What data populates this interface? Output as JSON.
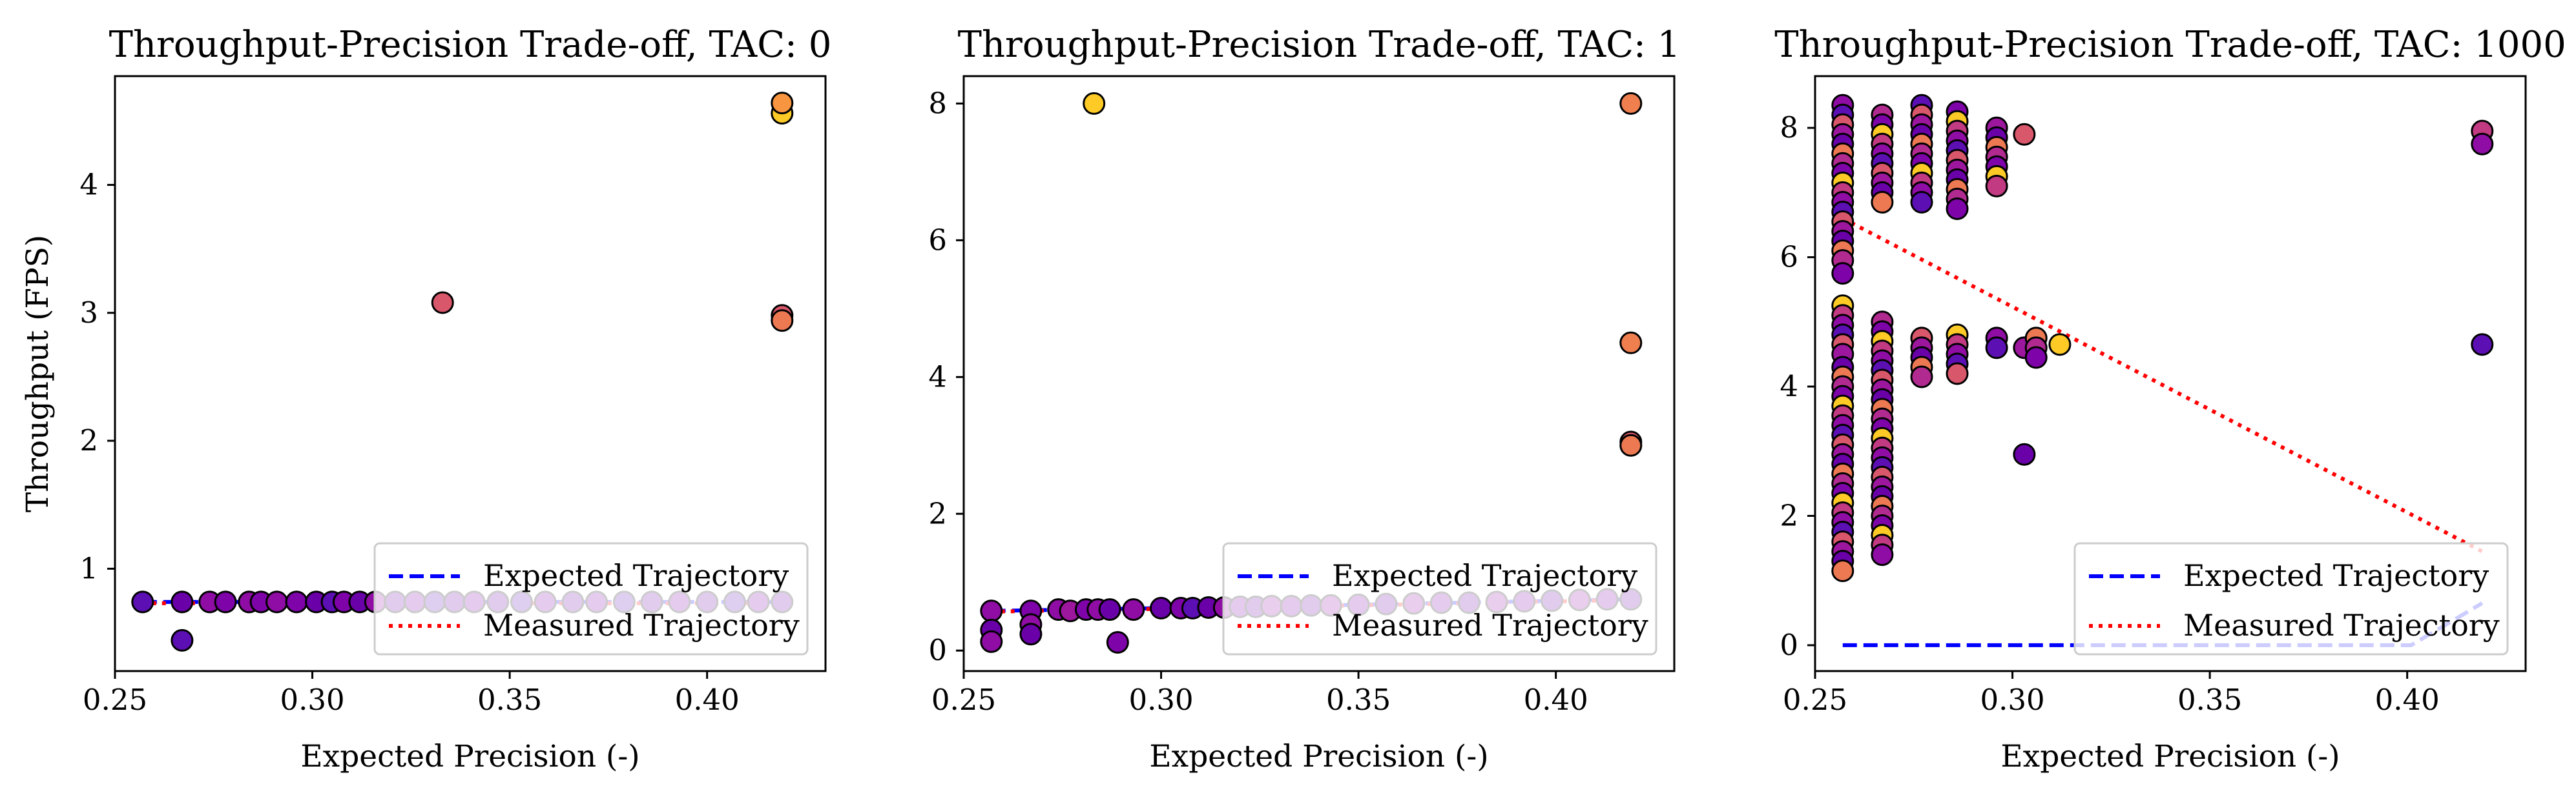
{
  "chart_data": [
    {
      "type": "scatter",
      "title": "Throughput-Precision Trade-off, TAC: 0",
      "xlabel": "Expected Precision (-)",
      "ylabel": "Throughput (FPS)",
      "xlim": [
        0.25,
        0.43
      ],
      "ylim": [
        0.2,
        4.85
      ],
      "xticks": [
        0.25,
        0.3,
        0.35,
        0.4
      ],
      "xtick_labels": [
        "0.25",
        "0.30",
        "0.35",
        "0.40"
      ],
      "yticks": [
        1,
        2,
        3,
        4
      ],
      "ytick_labels": [
        "1",
        "2",
        "3",
        "4"
      ],
      "legend_position": "lower-right",
      "legend": [
        {
          "label": "Expected Trajectory",
          "style": "dashed",
          "color": "#0000ff"
        },
        {
          "label": "Measured Trajectory",
          "style": "dotted",
          "color": "#ff0000"
        }
      ],
      "points": [
        {
          "x": 0.257,
          "y": 0.74,
          "color": "#5c0fb3"
        },
        {
          "x": 0.267,
          "y": 0.74,
          "color": "#6a00a8"
        },
        {
          "x": 0.267,
          "y": 0.44,
          "color": "#5c0fb3"
        },
        {
          "x": 0.274,
          "y": 0.74,
          "color": "#8f0da4"
        },
        {
          "x": 0.278,
          "y": 0.74,
          "color": "#7e03a8"
        },
        {
          "x": 0.284,
          "y": 0.74,
          "color": "#8f0da4"
        },
        {
          "x": 0.287,
          "y": 0.74,
          "color": "#7e03a8"
        },
        {
          "x": 0.291,
          "y": 0.74,
          "color": "#8f0da4"
        },
        {
          "x": 0.296,
          "y": 0.74,
          "color": "#7e03a8"
        },
        {
          "x": 0.301,
          "y": 0.74,
          "color": "#6a00a8"
        },
        {
          "x": 0.305,
          "y": 0.74,
          "color": "#5c0fb3"
        },
        {
          "x": 0.308,
          "y": 0.74,
          "color": "#7e03a8"
        },
        {
          "x": 0.312,
          "y": 0.74,
          "color": "#6a00a8"
        },
        {
          "x": 0.316,
          "y": 0.74,
          "color": "#8f0da4"
        },
        {
          "x": 0.321,
          "y": 0.74,
          "color": "#6a00a8"
        },
        {
          "x": 0.326,
          "y": 0.74,
          "color": "#7e03a8"
        },
        {
          "x": 0.331,
          "y": 0.74,
          "color": "#5c0fb3"
        },
        {
          "x": 0.336,
          "y": 0.74,
          "color": "#6a00a8"
        },
        {
          "x": 0.341,
          "y": 0.74,
          "color": "#7e03a8"
        },
        {
          "x": 0.347,
          "y": 0.74,
          "color": "#6a00a8"
        },
        {
          "x": 0.353,
          "y": 0.74,
          "color": "#5c0fb3"
        },
        {
          "x": 0.359,
          "y": 0.74,
          "color": "#7e03a8"
        },
        {
          "x": 0.366,
          "y": 0.74,
          "color": "#6a00a8"
        },
        {
          "x": 0.372,
          "y": 0.74,
          "color": "#7e03a8"
        },
        {
          "x": 0.379,
          "y": 0.74,
          "color": "#5c0fb3"
        },
        {
          "x": 0.386,
          "y": 0.74,
          "color": "#6a00a8"
        },
        {
          "x": 0.393,
          "y": 0.74,
          "color": "#7e03a8"
        },
        {
          "x": 0.4,
          "y": 0.74,
          "color": "#6a00a8"
        },
        {
          "x": 0.407,
          "y": 0.74,
          "color": "#5c0fb3"
        },
        {
          "x": 0.413,
          "y": 0.74,
          "color": "#7e03a8"
        },
        {
          "x": 0.419,
          "y": 0.74,
          "color": "#6a00a8"
        },
        {
          "x": 0.333,
          "y": 3.08,
          "color": "#d8576b"
        },
        {
          "x": 0.419,
          "y": 2.98,
          "color": "#d8576b"
        },
        {
          "x": 0.419,
          "y": 2.94,
          "color": "#ed7953"
        },
        {
          "x": 0.419,
          "y": 4.56,
          "color": "#fdca26"
        },
        {
          "x": 0.419,
          "y": 4.64,
          "color": "#f89540"
        }
      ],
      "lines": [
        {
          "name": "expected",
          "x": [
            0.257,
            0.419
          ],
          "y": [
            0.74,
            0.74
          ],
          "style": "dashed",
          "color": "#0000ff"
        },
        {
          "name": "measured",
          "x": [
            0.257,
            0.419
          ],
          "y": [
            0.73,
            0.73
          ],
          "style": "dotted",
          "color": "#ff0000"
        }
      ]
    },
    {
      "type": "scatter",
      "title": "Throughput-Precision Trade-off, TAC: 1",
      "xlabel": "Expected Precision (-)",
      "ylabel": "",
      "xlim": [
        0.25,
        0.43
      ],
      "ylim": [
        -0.3,
        8.4
      ],
      "xticks": [
        0.25,
        0.3,
        0.35,
        0.4
      ],
      "xtick_labels": [
        "0.25",
        "0.30",
        "0.35",
        "0.40"
      ],
      "yticks": [
        0,
        2,
        4,
        6,
        8
      ],
      "ytick_labels": [
        "0",
        "2",
        "4",
        "6",
        "8"
      ],
      "legend_position": "lower-right",
      "legend": [
        {
          "label": "Expected Trajectory",
          "style": "dashed",
          "color": "#0000ff"
        },
        {
          "label": "Measured Trajectory",
          "style": "dotted",
          "color": "#ff0000"
        }
      ],
      "points": [
        {
          "x": 0.257,
          "y": 0.58,
          "color": "#8f0da4"
        },
        {
          "x": 0.257,
          "y": 0.3,
          "color": "#6a00a8"
        },
        {
          "x": 0.257,
          "y": 0.13,
          "color": "#8f0da4"
        },
        {
          "x": 0.267,
          "y": 0.58,
          "color": "#7e03a8"
        },
        {
          "x": 0.267,
          "y": 0.38,
          "color": "#8f0da4"
        },
        {
          "x": 0.267,
          "y": 0.24,
          "color": "#6a00a8"
        },
        {
          "x": 0.274,
          "y": 0.6,
          "color": "#8f0da4"
        },
        {
          "x": 0.277,
          "y": 0.58,
          "color": "#9c179e"
        },
        {
          "x": 0.281,
          "y": 0.6,
          "color": "#7e03a8"
        },
        {
          "x": 0.284,
          "y": 0.6,
          "color": "#8f0da4"
        },
        {
          "x": 0.287,
          "y": 0.6,
          "color": "#6a00a8"
        },
        {
          "x": 0.289,
          "y": 0.12,
          "color": "#7e03a8"
        },
        {
          "x": 0.293,
          "y": 0.6,
          "color": "#8f0da4"
        },
        {
          "x": 0.3,
          "y": 0.62,
          "color": "#6a00a8"
        },
        {
          "x": 0.305,
          "y": 0.62,
          "color": "#7e03a8"
        },
        {
          "x": 0.308,
          "y": 0.62,
          "color": "#5c0fb3"
        },
        {
          "x": 0.312,
          "y": 0.63,
          "color": "#6a00a8"
        },
        {
          "x": 0.316,
          "y": 0.63,
          "color": "#8f0da4"
        },
        {
          "x": 0.32,
          "y": 0.64,
          "color": "#7e03a8"
        },
        {
          "x": 0.324,
          "y": 0.64,
          "color": "#6a00a8"
        },
        {
          "x": 0.328,
          "y": 0.65,
          "color": "#8f0da4"
        },
        {
          "x": 0.333,
          "y": 0.65,
          "color": "#7e03a8"
        },
        {
          "x": 0.338,
          "y": 0.66,
          "color": "#6a00a8"
        },
        {
          "x": 0.343,
          "y": 0.66,
          "color": "#8f0da4"
        },
        {
          "x": 0.35,
          "y": 0.67,
          "color": "#7e03a8"
        },
        {
          "x": 0.357,
          "y": 0.68,
          "color": "#6a00a8"
        },
        {
          "x": 0.364,
          "y": 0.69,
          "color": "#8f0da4"
        },
        {
          "x": 0.371,
          "y": 0.7,
          "color": "#7e03a8"
        },
        {
          "x": 0.378,
          "y": 0.7,
          "color": "#6a00a8"
        },
        {
          "x": 0.385,
          "y": 0.71,
          "color": "#8f0da4"
        },
        {
          "x": 0.392,
          "y": 0.72,
          "color": "#7e03a8"
        },
        {
          "x": 0.399,
          "y": 0.73,
          "color": "#6a00a8"
        },
        {
          "x": 0.406,
          "y": 0.74,
          "color": "#8f0da4"
        },
        {
          "x": 0.413,
          "y": 0.75,
          "color": "#7e03a8"
        },
        {
          "x": 0.419,
          "y": 0.75,
          "color": "#6a00a8"
        },
        {
          "x": 0.283,
          "y": 8.0,
          "color": "#fdca26"
        },
        {
          "x": 0.419,
          "y": 8.0,
          "color": "#f07f4f"
        },
        {
          "x": 0.419,
          "y": 4.5,
          "color": "#f07f4f"
        },
        {
          "x": 0.419,
          "y": 3.05,
          "color": "#d8576b"
        },
        {
          "x": 0.419,
          "y": 3.0,
          "color": "#ed7953"
        }
      ],
      "lines": [
        {
          "name": "expected",
          "x": [
            0.257,
            0.3,
            0.35,
            0.419
          ],
          "y": [
            0.58,
            0.62,
            0.67,
            0.75
          ],
          "style": "dashed",
          "color": "#0000ff"
        },
        {
          "name": "measured",
          "x": [
            0.257,
            0.3,
            0.35,
            0.419
          ],
          "y": [
            0.57,
            0.61,
            0.66,
            0.74
          ],
          "style": "dotted",
          "color": "#ff0000"
        }
      ]
    },
    {
      "type": "scatter",
      "title": "Throughput-Precision Trade-off, TAC: 1000",
      "xlabel": "Expected Precision (-)",
      "ylabel": "",
      "xlim": [
        0.25,
        0.43
      ],
      "ylim": [
        -0.4,
        8.8
      ],
      "xticks": [
        0.25,
        0.3,
        0.35,
        0.4
      ],
      "xtick_labels": [
        "0.25",
        "0.30",
        "0.35",
        "0.40"
      ],
      "yticks": [
        0,
        2,
        4,
        6,
        8
      ],
      "ytick_labels": [
        "0",
        "2",
        "4",
        "6",
        "8"
      ],
      "legend_position": "lower-right",
      "legend": [
        {
          "label": "Expected Trajectory",
          "style": "dashed",
          "color": "#0000ff"
        },
        {
          "label": "Measured Trajectory",
          "style": "dotted",
          "color": "#ff0000"
        }
      ],
      "point_columns": [
        {
          "x": 0.257,
          "y_values": [
            8.35,
            8.2,
            8.05,
            7.9,
            7.75,
            7.6,
            7.45,
            7.3,
            7.15,
            7.0,
            6.85,
            6.7,
            6.55,
            6.4,
            6.25,
            6.1,
            5.95,
            5.75,
            5.25,
            5.1,
            4.95,
            4.8,
            4.65,
            4.5,
            4.3,
            4.15,
            4.0,
            3.85,
            3.7,
            3.55,
            3.4,
            3.25,
            3.1,
            2.95,
            2.8,
            2.65,
            2.5,
            2.35,
            2.2,
            2.05,
            1.9,
            1.75,
            1.6,
            1.45,
            1.3,
            1.15
          ]
        },
        {
          "x": 0.267,
          "y_values": [
            8.2,
            8.05,
            7.9,
            7.75,
            7.6,
            7.45,
            7.3,
            7.15,
            7.0,
            6.85,
            5.0,
            4.85,
            4.7,
            4.55,
            4.4,
            4.25,
            4.1,
            3.95,
            3.8,
            3.65,
            3.5,
            3.35,
            3.2,
            3.05,
            2.9,
            2.75,
            2.6,
            2.45,
            2.3,
            2.15,
            2.0,
            1.85,
            1.7,
            1.55,
            1.4
          ]
        },
        {
          "x": 0.277,
          "y_values": [
            8.35,
            8.2,
            8.05,
            7.9,
            7.75,
            7.6,
            7.45,
            7.3,
            7.15,
            7.0,
            6.85,
            4.75,
            4.6,
            4.45,
            4.3,
            4.15
          ]
        },
        {
          "x": 0.286,
          "y_values": [
            8.25,
            8.1,
            7.95,
            7.8,
            7.65,
            7.5,
            7.35,
            7.2,
            7.05,
            6.9,
            6.75,
            4.8,
            4.65,
            4.5,
            4.35,
            4.2
          ]
        },
        {
          "x": 0.296,
          "y_values": [
            8.0,
            7.85,
            7.7,
            7.55,
            7.4,
            7.25,
            7.1,
            4.75,
            4.6
          ]
        },
        {
          "x": 0.303,
          "y_values": [
            7.9,
            4.6,
            2.95
          ]
        },
        {
          "x": 0.306,
          "y_values": [
            4.75,
            4.6,
            4.45
          ]
        },
        {
          "x": 0.312,
          "y_values": [
            4.65
          ]
        },
        {
          "x": 0.419,
          "y_values": [
            7.95,
            7.75,
            4.65
          ]
        }
      ],
      "lines": [
        {
          "name": "expected",
          "x": [
            0.257,
            0.401,
            0.419
          ],
          "y": [
            0.0,
            0.0,
            0.65
          ],
          "style": "dashed",
          "color": "#0000ff"
        },
        {
          "name": "measured",
          "x": [
            0.257,
            0.419
          ],
          "y": [
            6.6,
            1.45
          ],
          "style": "dotted",
          "color": "#ff0000"
        }
      ]
    }
  ]
}
